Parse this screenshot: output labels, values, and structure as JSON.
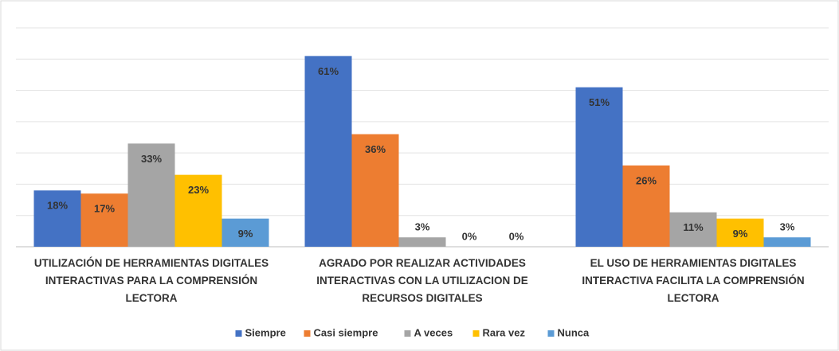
{
  "chart_data": {
    "type": "bar",
    "categories": [
      "UTILIZACIÓN DE HERRAMIENTAS DIGITALES INTERACTIVAS PARA LA COMPRENSIÓN LECTORA",
      "AGRADO POR REALIZAR ACTIVIDADES INTERACTIVAS CON LA UTILIZACION DE RECURSOS DIGITALES",
      "EL USO DE HERRAMIENTAS DIGITALES INTERACTIVA FACILITA LA COMPRENSIÓN LECTORA"
    ],
    "series": [
      {
        "name": "Siempre",
        "color": "#4472c4",
        "values": [
          18,
          61,
          51
        ],
        "value_labels": [
          "18%",
          "61%",
          "51%"
        ]
      },
      {
        "name": "Casi siempre",
        "color": "#ed7d31",
        "values": [
          17,
          36,
          26
        ],
        "value_labels": [
          "17%",
          "36%",
          "26%"
        ]
      },
      {
        "name": "A veces",
        "color": "#a5a5a5",
        "values": [
          33,
          3,
          11
        ],
        "value_labels": [
          "33%",
          "3%",
          "11%"
        ]
      },
      {
        "name": "Rara vez",
        "color": "#ffc000",
        "values": [
          23,
          0,
          9
        ],
        "value_labels": [
          "23%",
          "0%",
          "9%"
        ]
      },
      {
        "name": "Nunca",
        "color": "#5b9bd5",
        "values": [
          9,
          0,
          3
        ],
        "value_labels": [
          "9%",
          "0%",
          "3%"
        ]
      }
    ],
    "ylim": [
      0,
      70
    ],
    "yticks": [
      0,
      10,
      20,
      30,
      40,
      50,
      60,
      70
    ],
    "grid": true,
    "legend": "bottom"
  }
}
